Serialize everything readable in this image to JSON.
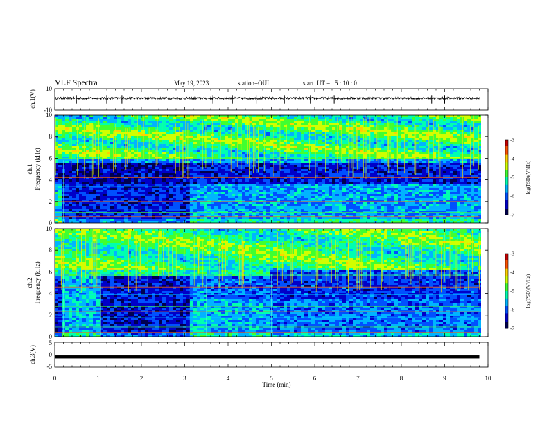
{
  "header": {
    "title": "VLF Spectra",
    "date": "May 19, 2023",
    "station": "station=OUI",
    "start": "start  UT =   5 : 10 : 0"
  },
  "colors": {
    "colormap": [
      "#000050",
      "#0000c8",
      "#0050ff",
      "#00b4ff",
      "#00ffb0",
      "#40ff30",
      "#d0ff00",
      "#ffd000",
      "#ff5000",
      "#c80000",
      "#ffffff"
    ],
    "trace": "#000000"
  },
  "chart_data": [
    {
      "type": "line",
      "panel": "ch1-waveform",
      "ylabel": "ch.1(V)",
      "ylim": [
        -10,
        10
      ],
      "yticks": [
        "10",
        "-10"
      ],
      "x_range_min": [
        0,
        9.8
      ],
      "level_v": 1,
      "amplitude_v": 1,
      "spikes_min": [
        0.5,
        1.2,
        1.55,
        3.65,
        4.1,
        4.65,
        5.3,
        5.9,
        6.45,
        8.7,
        9.0
      ]
    },
    {
      "type": "heatmap",
      "panel": "ch1-spectrogram",
      "ylabel": "ch.1\nFrequency (kHz)",
      "ylabel_line1": "ch.1",
      "ylabel_line2": "Frequency (kHz)",
      "ylim_khz": [
        0,
        10
      ],
      "yticks": [
        "0",
        "2",
        "4",
        "6",
        "8",
        "10"
      ],
      "x_range_min": [
        0,
        9.8
      ],
      "colorbar_label": "log(PSD)(V²/Hz)",
      "colorbar_range": [
        -7,
        -3
      ],
      "colorbar_ticks": [
        "-3",
        "-4",
        "-5",
        "-6",
        "-7"
      ],
      "transitions_min": [
        0.2,
        3.1
      ]
    },
    {
      "type": "heatmap",
      "panel": "ch2-spectrogram",
      "ylabel": "ch.2\nFrequency (kHz)",
      "ylabel_line1": "ch.2",
      "ylabel_line2": "Frequency (kHz)",
      "ylim_khz": [
        0,
        10
      ],
      "yticks": [
        "0",
        "2",
        "4",
        "6",
        "8",
        "10"
      ],
      "x_range_min": [
        0,
        9.8
      ],
      "colorbar_label": "log(PSD)(V²/Hz)",
      "colorbar_range": [
        -7,
        -3
      ],
      "colorbar_ticks": [
        "-3",
        "-4",
        "-5",
        "-6",
        "-7"
      ],
      "transitions_min": [
        0.2,
        1.05,
        3.1,
        3.5,
        5.0
      ]
    },
    {
      "type": "line",
      "panel": "ch3-waveform",
      "ylabel": "ch.3(V)",
      "ylim": [
        -5,
        5
      ],
      "yticks": [
        "5",
        "0",
        "-5"
      ],
      "x_range_min": [
        0,
        9.8
      ],
      "level_v": -0.9
    }
  ],
  "xaxis": {
    "label": "Time (min)",
    "range": [
      0,
      10
    ],
    "ticks": [
      "0",
      "1",
      "2",
      "3",
      "4",
      "5",
      "6",
      "7",
      "8",
      "9",
      "10"
    ]
  }
}
